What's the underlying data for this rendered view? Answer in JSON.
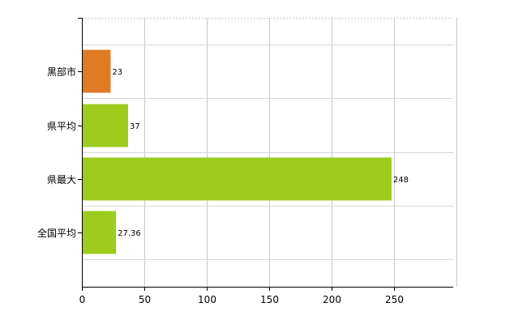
{
  "chart_data": {
    "type": "bar",
    "orientation": "horizontal",
    "categories": [
      "黒部市",
      "県平均",
      "県最大",
      "全国平均"
    ],
    "values": [
      23,
      37,
      248,
      27.36
    ],
    "value_labels": [
      "23",
      "37",
      "248",
      "27.36"
    ],
    "bar_colors": [
      "#e07b24",
      "#9dcc1f",
      "#9dcc1f",
      "#9dcc1f"
    ],
    "xlim": [
      0,
      300
    ],
    "x_ticks": [
      0,
      50,
      100,
      150,
      200,
      250
    ],
    "x_tick_labels": [
      "0",
      "50",
      "100",
      "150",
      "200",
      "250"
    ],
    "grid": true,
    "legend": "none"
  }
}
